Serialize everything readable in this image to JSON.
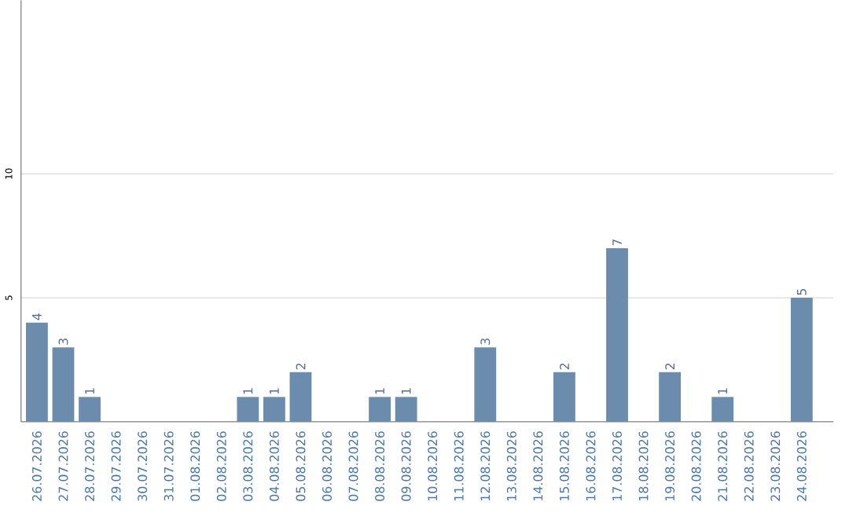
{
  "chart_data": {
    "type": "bar",
    "categories": [
      "26.07.2026",
      "27.07.2026",
      "28.07.2026",
      "29.07.2026",
      "30.07.2026",
      "31.07.2026",
      "01.08.2026",
      "02.08.2026",
      "03.08.2026",
      "04.08.2026",
      "05.08.2026",
      "06.08.2026",
      "07.08.2026",
      "08.08.2026",
      "09.08.2026",
      "10.08.2026",
      "11.08.2026",
      "12.08.2026",
      "13.08.2026",
      "14.08.2026",
      "15.08.2026",
      "16.08.2026",
      "17.08.2026",
      "18.08.2026",
      "19.08.2026",
      "20.08.2026",
      "21.08.2026",
      "22.08.2026",
      "23.08.2026",
      "24.08.2026"
    ],
    "values": [
      4,
      3,
      1,
      0,
      0,
      0,
      0,
      0,
      1,
      1,
      2,
      0,
      0,
      1,
      1,
      0,
      0,
      3,
      0,
      0,
      2,
      0,
      7,
      0,
      2,
      0,
      1,
      0,
      0,
      5
    ],
    "value_labels": [
      "4",
      "3",
      "1",
      null,
      null,
      null,
      null,
      null,
      "1",
      "1",
      "2",
      null,
      null,
      "1",
      "1",
      null,
      null,
      "3",
      null,
      null,
      "2",
      null,
      "7",
      null,
      "2",
      null,
      "1",
      null,
      null,
      "5"
    ],
    "color": "#6b8cad",
    "ylim": [
      0,
      17
    ],
    "yticks": [
      5,
      10
    ],
    "grid": "y"
  }
}
